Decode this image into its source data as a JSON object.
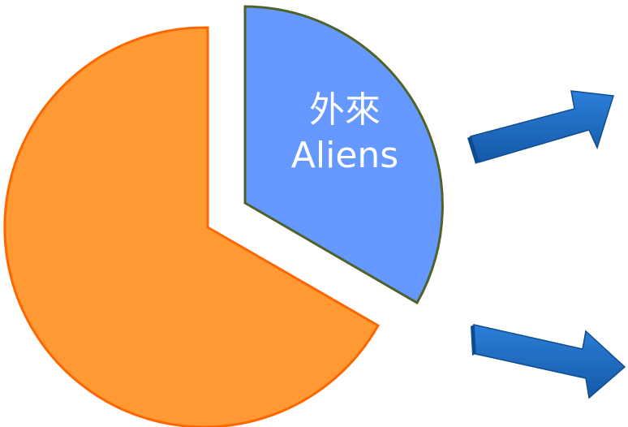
{
  "pie": {
    "slices": [
      {
        "id": "aliens",
        "label_zh": "外來",
        "label_en": "Aliens",
        "fraction": 0.33,
        "fill": "#6699FF",
        "stroke": "#4F6228",
        "exploded": true
      },
      {
        "id": "other",
        "label_zh": "",
        "label_en": "",
        "fraction": 0.67,
        "fill": "#FF9933",
        "stroke": "#FF6600",
        "exploded": false
      }
    ]
  },
  "arrows": [
    {
      "id": "upper",
      "color": "#1F6FC6"
    },
    {
      "id": "lower",
      "color": "#1F6FC6"
    }
  ]
}
